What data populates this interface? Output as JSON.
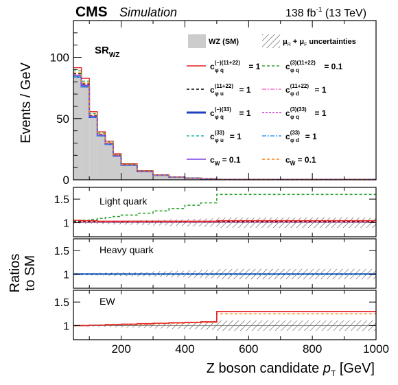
{
  "header": {
    "experiment": "CMS",
    "subtitle": "Simulation",
    "lumi": "138 fb",
    "lumi_sup": "-1",
    "energy": " (13 TeV)"
  },
  "main": {
    "region": "SR",
    "region_sub": "WZ",
    "ylabel": "Events / GeV"
  },
  "ratios": {
    "ylabel_line1": "Ratios",
    "ylabel_line2": "to SM",
    "panels": [
      {
        "label": "Light quark"
      },
      {
        "label": "Heavy quark"
      },
      {
        "label": "EW"
      }
    ]
  },
  "xaxis": {
    "label": "Z boson candidate ",
    "label_var": "p",
    "label_sub": "T",
    "label_unit": " [GeV]"
  },
  "legend": {
    "sm_label": "WZ (SM)",
    "unc_label": "uncertainties",
    "entries": [
      {
        "c": "c",
        "sub": "φ q",
        "sup": "(−)(11+22)",
        "eq": " = 1",
        "color": "#e41a1c",
        "dash": ""
      },
      {
        "c": "c",
        "sub": "φ q",
        "sup": "(3)(11+22)",
        "eq": " = 0.1",
        "color": "#2ca02c",
        "dash": "4,3"
      },
      {
        "c": "c",
        "sub": "φ u",
        "sup": "(11+22)",
        "eq": " = 1",
        "color": "#000000",
        "dash": "4,3"
      },
      {
        "c": "c",
        "sub": "φ d",
        "sup": "(11+22)",
        "eq": " = 1",
        "color": "#ff66cc",
        "dash": "6,2,2,2"
      },
      {
        "c": "c",
        "sub": "φ q",
        "sup": "(−)(33)",
        "eq": " = 1",
        "color": "#1f3fbf",
        "dash": ""
      },
      {
        "c": "c",
        "sub": "φ q",
        "sup": "(3)(33)",
        "eq": " = 1",
        "color": "#cc33cc",
        "dash": "3,2"
      },
      {
        "c": "c",
        "sub": "φ u",
        "sup": "(33)",
        "eq": " = 1",
        "color": "#20b2aa",
        "dash": "4,3"
      },
      {
        "c": "c",
        "sub": "φ d",
        "sup": "(33)",
        "eq": " = 1",
        "color": "#3399ff",
        "dash": "6,2,2,2"
      },
      {
        "c": "c",
        "sub": "W",
        "sup": "",
        "eq": " = 0.1",
        "color": "#7b3fe4",
        "dash": ""
      },
      {
        "c": "c",
        "sub": "W̃",
        "sup": "",
        "eq": " = 0.1",
        "color": "#ff7f0e",
        "dash": "4,3"
      }
    ]
  },
  "chart_data": {
    "type": "bar",
    "x_edges": [
      50,
      75,
      100,
      125,
      150,
      175,
      200,
      250,
      300,
      350,
      400,
      450,
      500,
      1000
    ],
    "sm_values": [
      84,
      76,
      51,
      36,
      29,
      19.5,
      12,
      6.8,
      3.8,
      2.2,
      1.3,
      0.8,
      0.3
    ],
    "xlim": [
      50,
      1000
    ],
    "ylim_main": [
      0,
      130
    ],
    "ylim_ratio": [
      0.7,
      1.75
    ],
    "xticks": [
      200,
      400,
      600,
      800,
      1000
    ],
    "yticks_main": [
      0,
      50,
      100
    ],
    "yticks_ratio": [
      1,
      1.5
    ],
    "ratio_light": {
      "red": [
        1.05,
        1.04,
        1.04,
        1.03,
        1.03,
        1.03,
        1.03,
        1.03,
        1.03,
        1.03,
        1.03,
        1.03,
        1.04
      ],
      "green": [
        1.04,
        1.05,
        1.07,
        1.09,
        1.11,
        1.13,
        1.16,
        1.2,
        1.25,
        1.3,
        1.37,
        1.42,
        1.6
      ],
      "black": [
        1.02,
        1.02,
        1.02,
        1.02,
        1.02,
        1.02,
        1.02,
        1.02,
        1.02,
        1.02,
        1.02,
        1.02,
        1.02
      ],
      "pink": [
        1.01,
        1.01,
        1.01,
        1.01,
        1.01,
        1.01,
        1.01,
        1.01,
        1.01,
        1.01,
        1.01,
        1.01,
        1.01
      ]
    },
    "ratio_heavy": {
      "blue": [
        1.0,
        1.0,
        1.0,
        1.0,
        1.0,
        1.0,
        1.0,
        1.0,
        1.0,
        1.0,
        1.0,
        1.0,
        1.0
      ],
      "teal": [
        1.0,
        1.0,
        1.0,
        1.0,
        1.0,
        1.0,
        1.0,
        1.0,
        1.0,
        1.0,
        1.0,
        1.0,
        1.0
      ]
    },
    "ratio_ew": {
      "red": [
        1.0,
        1.0,
        1.01,
        1.01,
        1.02,
        1.02,
        1.03,
        1.04,
        1.05,
        1.06,
        1.07,
        1.08,
        1.3
      ],
      "orange": [
        1.0,
        1.0,
        1.01,
        1.01,
        1.01,
        1.02,
        1.02,
        1.03,
        1.04,
        1.05,
        1.06,
        1.07,
        1.25
      ]
    },
    "unc_halfwidth": [
      0.02,
      0.02,
      0.025,
      0.03,
      0.035,
      0.04,
      0.045,
      0.05,
      0.06,
      0.07,
      0.08,
      0.09,
      0.11
    ]
  }
}
